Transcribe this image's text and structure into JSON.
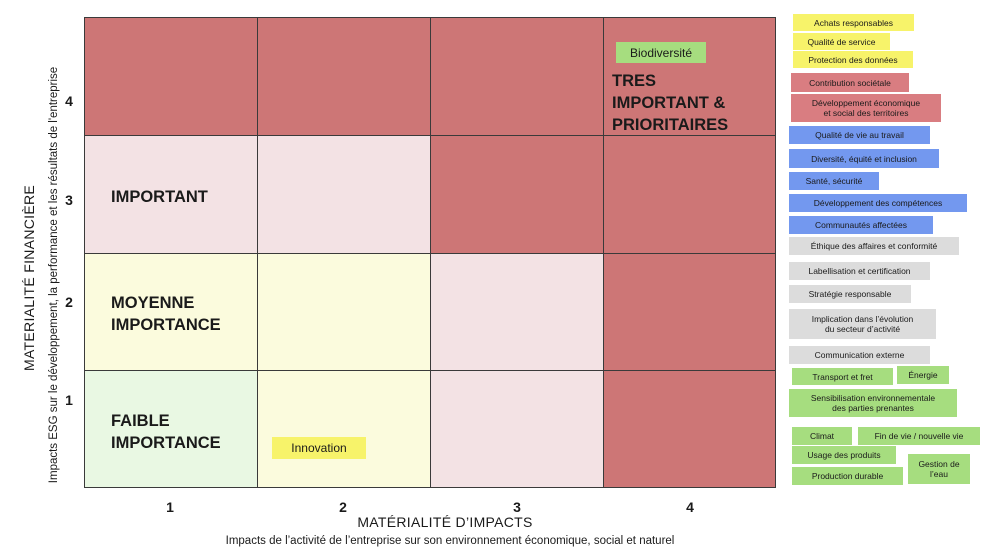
{
  "y_axis": {
    "title": "MATERIALITÉ FINANCIÈRE",
    "subtitle": "Impacts ESG sur le développement, la performance et les résultats de l'entreprise",
    "ticks": [
      "4",
      "3",
      "2",
      "1"
    ]
  },
  "x_axis": {
    "title": "MATÉRIALITÉ D’IMPACTS",
    "subtitle": "Impacts de l’activité de l’entreprise sur son environnement économique, social et naturel",
    "ticks": [
      "1",
      "2",
      "3",
      "4"
    ]
  },
  "zones": {
    "tres_important": [
      "TRES",
      "IMPORTANT &",
      "PRIORITAIRES"
    ],
    "important": "IMPORTANT",
    "moyenne": [
      "MOYENNE",
      "IMPORTANCE"
    ],
    "faible": [
      "FAIBLE",
      "IMPORTANCE"
    ]
  },
  "placed_topics": {
    "biodiversite": "Biodiversité",
    "innovation": "Innovation"
  },
  "legend": {
    "yellow": [
      "Achats responsables",
      "Qualité de service",
      "Protection des données"
    ],
    "red": [
      "Contribution sociétale",
      "Développement  économique",
      "et social des territoires"
    ],
    "blue": [
      "Qualité de vie au travail",
      "Diversité, équité et inclusion",
      "Santé, sécurité",
      "Développement des compétences",
      "Communautés affectées"
    ],
    "grey": [
      "Éthique des affaires et conformité",
      "Labellisation et certification",
      "Stratégie responsable",
      "Implication dans l’évolution",
      "du secteur d’activité",
      "Communication externe"
    ],
    "green": [
      "Transport et fret",
      "Énergie",
      "Sensibilisation environnementale",
      "des parties prenantes",
      "Climat",
      "Fin de vie / nouvelle vie",
      "Usage des produits",
      "Gestion de",
      "l’eau",
      "Production durable"
    ]
  },
  "colors": {
    "grid_red": "#cd7676",
    "grid_pink": "#f3e2e4",
    "grid_yellow": "#fbfbdd",
    "grid_green": "#e9f8e3",
    "tag_yellow": "#f7f36a",
    "tag_red": "#d97d81",
    "tag_blue": "#7398ef",
    "tag_grey": "#dcdcdc",
    "tag_green": "#a6dd7f",
    "chip_green": "#a6dd7f",
    "chip_yellow": "#f7f36a"
  }
}
